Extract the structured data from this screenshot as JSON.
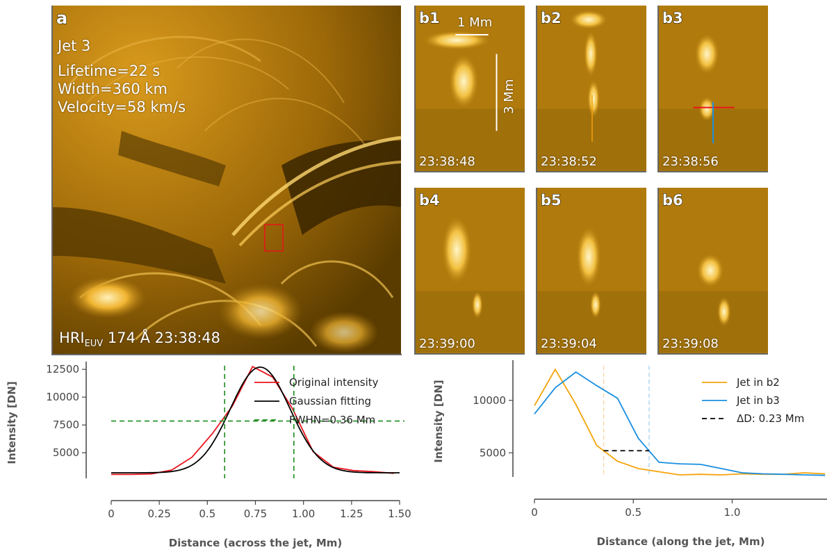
{
  "colors": {
    "aia_bright": "#ffe9a3",
    "aia_mid": "#c58a10",
    "aia_dark": "#4a3300",
    "red": "#e8141c",
    "black": "#000000",
    "green": "#1a8a1a",
    "orange": "#f5a30a",
    "blue": "#1a8fe0"
  },
  "panel_a": {
    "tag": "a",
    "jet_name": "Jet 3",
    "lifetime": "Lifetime=22 s",
    "width": "Width=360 km",
    "velocity": "Velocity=58 km/s",
    "instrument_main": "HRI",
    "instrument_sub": "EUV",
    "caption_rest": " 174 Å 23:38:48"
  },
  "frames": [
    {
      "tag": "b1",
      "time": "23:38:48"
    },
    {
      "tag": "b2",
      "time": "23:38:52"
    },
    {
      "tag": "b3",
      "time": "23:38:56"
    },
    {
      "tag": "b4",
      "time": "23:39:00"
    },
    {
      "tag": "b5",
      "time": "23:39:04"
    },
    {
      "tag": "b6",
      "time": "23:39:08"
    }
  ],
  "scale_bars": {
    "horizontal": "1 Mm",
    "vertical": "3 Mm"
  },
  "chart_data": [
    {
      "type": "line",
      "xlabel": "Distance (across the jet, Mm)",
      "ylabel": "Intensity [DN]",
      "xlim": [
        0,
        1.5
      ],
      "ylim": [
        2700,
        12700
      ],
      "xticks": [
        "0",
        "0.25",
        "0.5",
        "0.75",
        "1.00",
        "1.25",
        "1.50"
      ],
      "yticks": [
        "5000",
        "7500",
        "10000",
        "12500"
      ],
      "series": [
        {
          "name": "Original intensity",
          "color": "#e8141c",
          "x": [
            0,
            0.105,
            0.21,
            0.315,
            0.42,
            0.525,
            0.63,
            0.735,
            0.84,
            0.945,
            1.05,
            1.155,
            1.26,
            1.365,
            1.47
          ],
          "y": [
            3050,
            3050,
            3100,
            3450,
            4600,
            6700,
            9200,
            12750,
            11800,
            8900,
            5100,
            3700,
            3400,
            3300,
            3150
          ]
        },
        {
          "name": "Gaussian fitting",
          "color": "#000000",
          "gaussian": {
            "a": 9500,
            "mu": 0.775,
            "sigma": 0.155,
            "c": 3200
          }
        }
      ],
      "fwhm": {
        "label": "FWHN=0.36 Mm",
        "x1": 0.59,
        "x2": 0.95,
        "y": 7850
      }
    },
    {
      "type": "line",
      "xlabel": "Distance (along the jet, Mm)",
      "ylabel": "Intensity [DN]",
      "xlim": [
        0,
        1.48
      ],
      "ylim": [
        2700,
        13300
      ],
      "xticks": [
        "0",
        "0.5",
        "1.0"
      ],
      "yticks": [
        "5000",
        "10000"
      ],
      "series": [
        {
          "name": "Jet in b2",
          "color": "#f5a30a",
          "x": [
            0,
            0.105,
            0.21,
            0.315,
            0.42,
            0.525,
            0.63,
            0.735,
            0.84,
            0.945,
            1.05,
            1.155,
            1.26,
            1.365,
            1.47
          ],
          "y": [
            9500,
            12950,
            9600,
            5700,
            4200,
            3500,
            3200,
            2900,
            2950,
            2900,
            3000,
            2950,
            2950,
            3100,
            3000
          ]
        },
        {
          "name": "Jet in b3",
          "color": "#1a8fe0",
          "x": [
            0,
            0.105,
            0.21,
            0.315,
            0.42,
            0.525,
            0.63,
            0.735,
            0.84,
            0.945,
            1.05,
            1.155,
            1.26,
            1.365,
            1.47
          ],
          "y": [
            8700,
            11200,
            12700,
            11400,
            10200,
            6400,
            4100,
            3950,
            3900,
            3500,
            3100,
            3000,
            2950,
            2900,
            2850
          ]
        }
      ],
      "delta": {
        "label": "ΔD: 0.23 Mm",
        "x1": 0.35,
        "x2": 0.58,
        "y": 5200
      }
    }
  ]
}
